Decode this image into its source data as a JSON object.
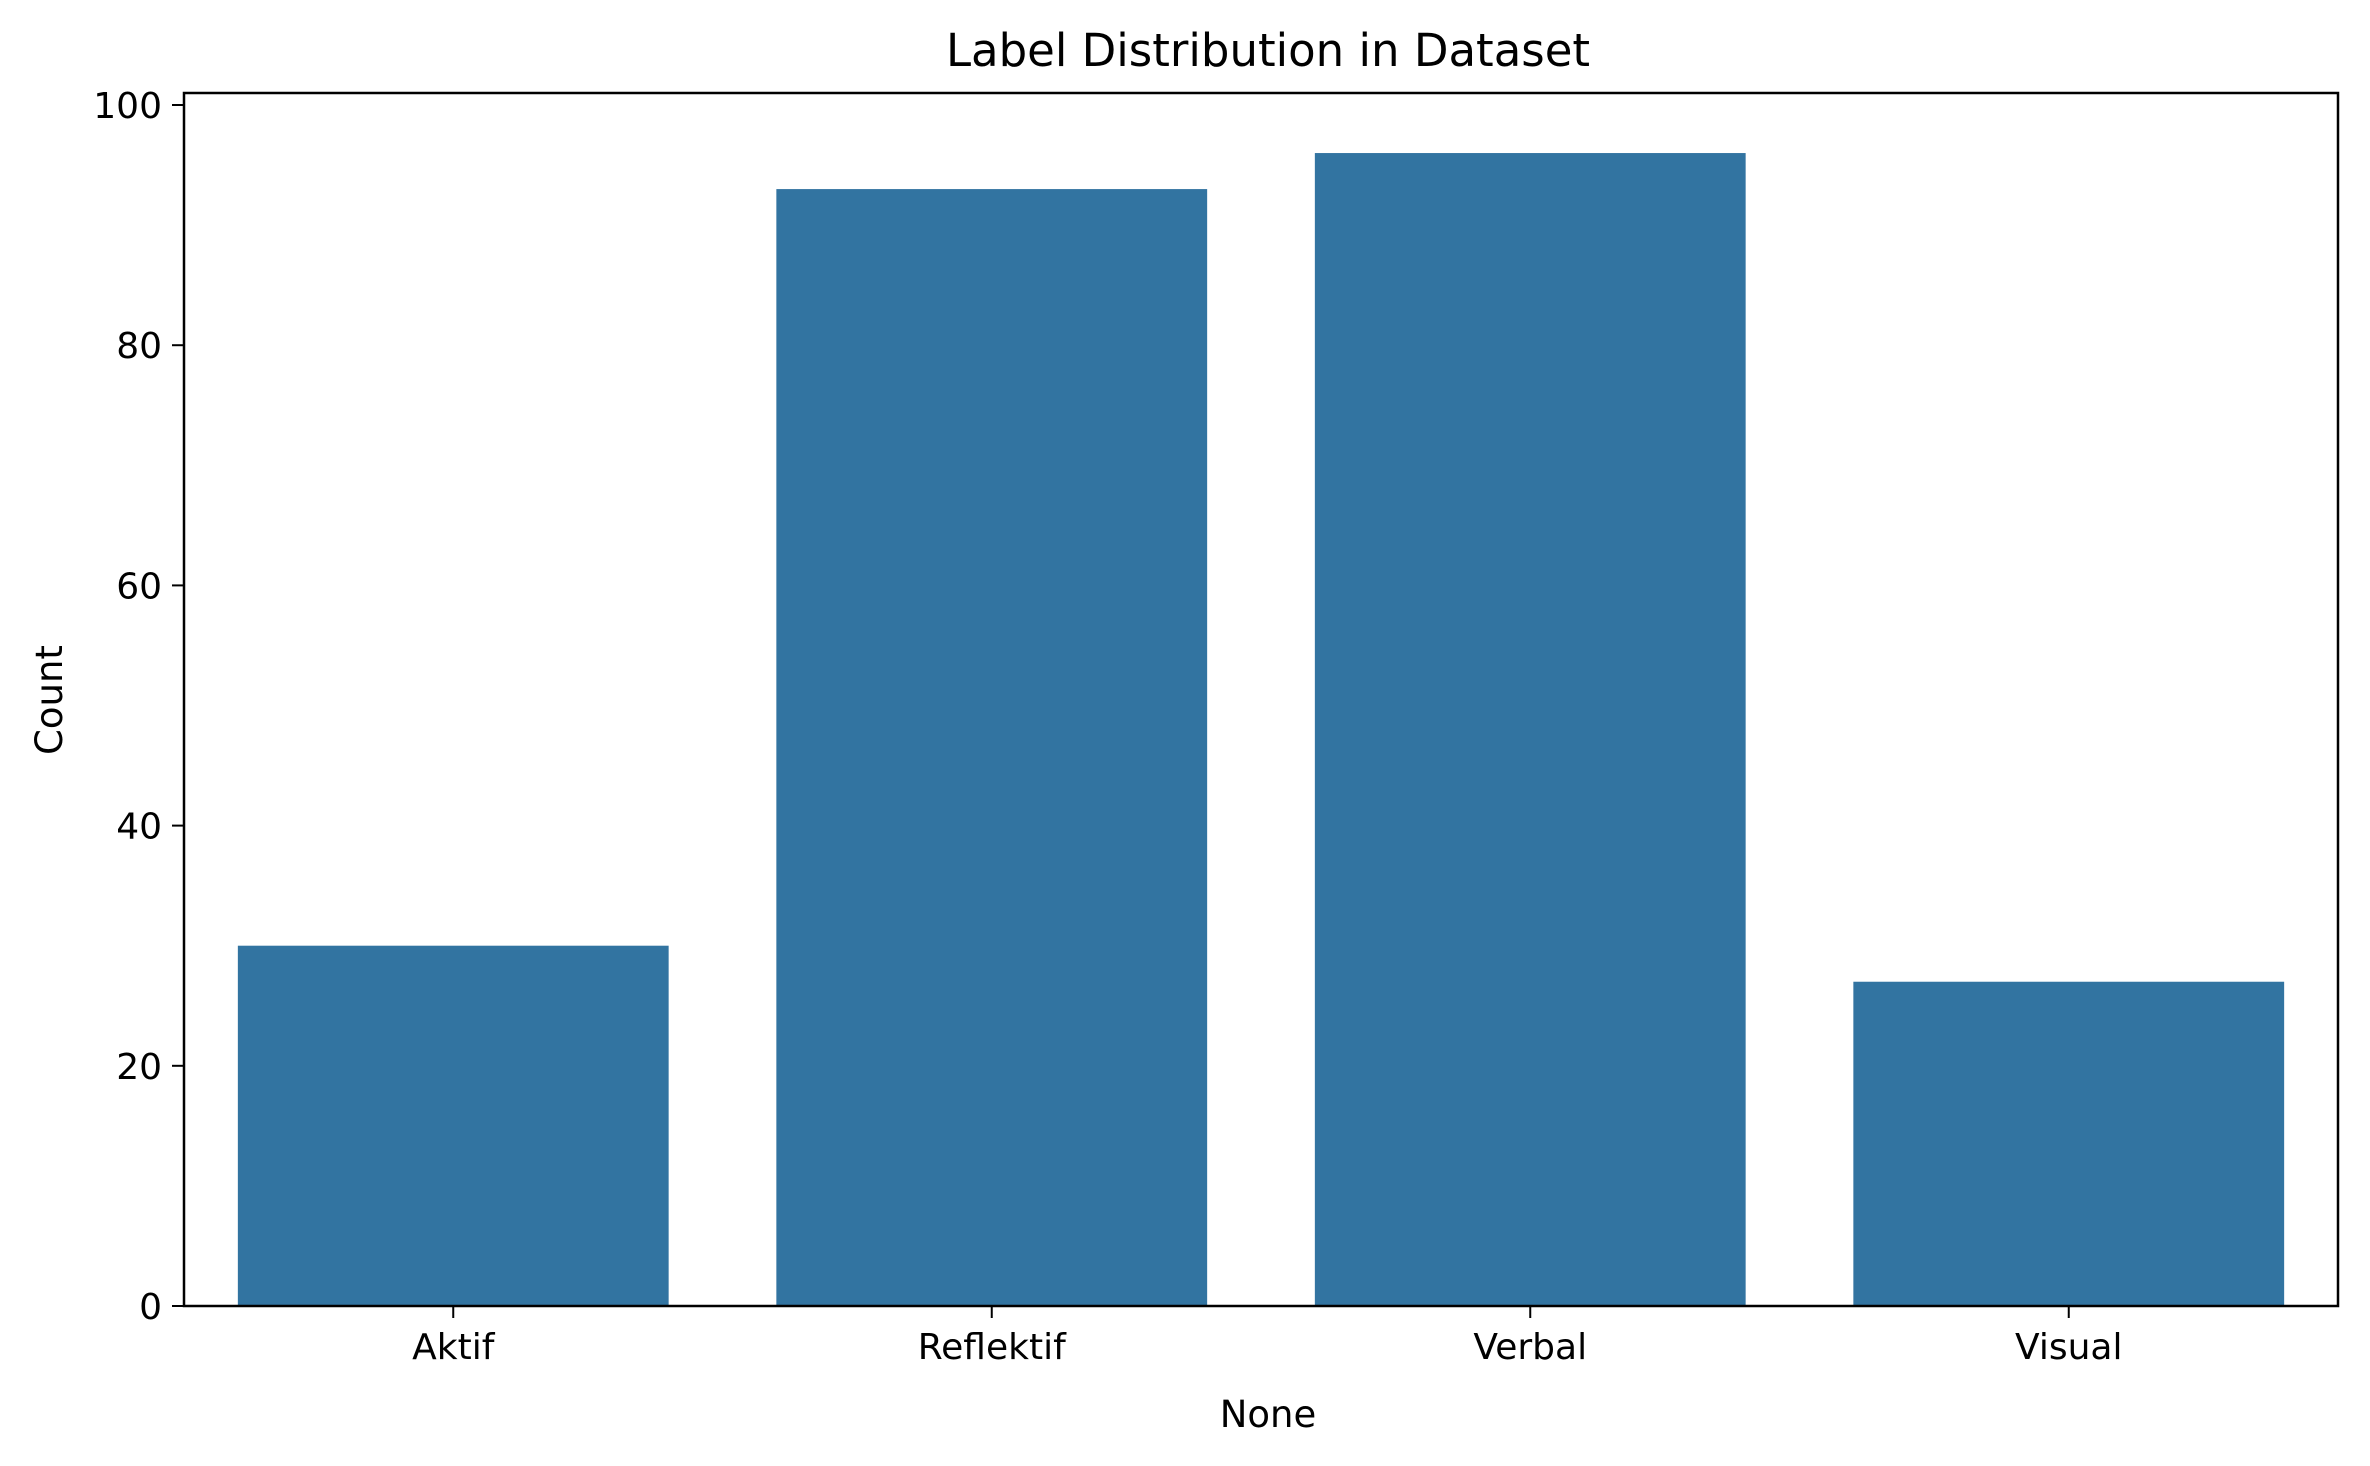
{
  "chart_data": {
    "type": "bar",
    "title": "Label Distribution in Dataset",
    "xlabel": "None",
    "ylabel": "Count",
    "categories": [
      "Aktif",
      "Reflektif",
      "Verbal",
      "Visual"
    ],
    "values": [
      30,
      93,
      96,
      27
    ],
    "ylim": [
      0,
      101
    ],
    "yticks": [
      0,
      20,
      40,
      60,
      80,
      100
    ],
    "bar_color": "#3274a1",
    "grid": false,
    "legend": "none"
  }
}
